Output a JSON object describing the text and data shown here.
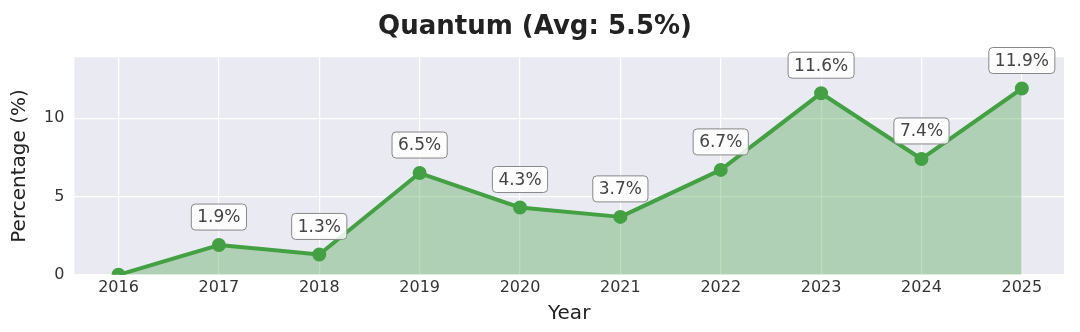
{
  "chart_data": {
    "type": "area",
    "title": "Quantum (Avg: 5.5%)",
    "xlabel": "Year",
    "ylabel": "Percentage (%)",
    "x": [
      2016,
      2017,
      2018,
      2019,
      2020,
      2021,
      2022,
      2023,
      2024,
      2025
    ],
    "series": [
      {
        "color": "#43a043",
        "values": [
          0,
          1.9,
          1.3,
          6.5,
          4.3,
          3.7,
          6.7,
          11.6,
          7.4,
          11.9
        ],
        "value_labels": [
          null,
          "1.9%",
          "1.3%",
          "6.5%",
          "4.3%",
          "3.7%",
          "6.7%",
          "11.6%",
          "7.4%",
          "11.9%"
        ]
      }
    ],
    "xlim": [
      2015.56,
      2025.42
    ],
    "xticks": [
      2016,
      2017,
      2018,
      2019,
      2020,
      2021,
      2022,
      2023,
      2024,
      2025
    ],
    "ylim": [
      0,
      13.9
    ],
    "yticks": [
      0,
      5,
      10
    ],
    "grid": true,
    "legend": false,
    "marker": "circle",
    "line_style": "solid"
  }
}
